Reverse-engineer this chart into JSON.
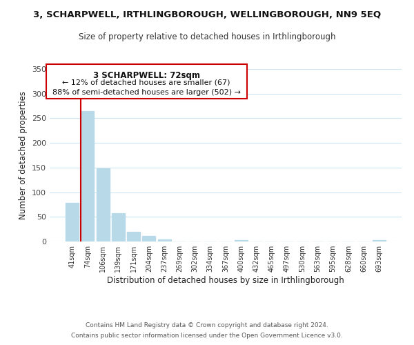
{
  "title": "3, SCHARPWELL, IRTHLINGBOROUGH, WELLINGBOROUGH, NN9 5EQ",
  "subtitle": "Size of property relative to detached houses in Irthlingborough",
  "xlabel": "Distribution of detached houses by size in Irthlingborough",
  "ylabel": "Number of detached properties",
  "footer_line1": "Contains HM Land Registry data © Crown copyright and database right 2024.",
  "footer_line2": "Contains public sector information licensed under the Open Government Licence v3.0.",
  "bar_labels": [
    "41sqm",
    "74sqm",
    "106sqm",
    "139sqm",
    "171sqm",
    "204sqm",
    "237sqm",
    "269sqm",
    "302sqm",
    "334sqm",
    "367sqm",
    "400sqm",
    "432sqm",
    "465sqm",
    "497sqm",
    "530sqm",
    "563sqm",
    "595sqm",
    "628sqm",
    "660sqm",
    "693sqm"
  ],
  "bar_values": [
    78,
    265,
    148,
    57,
    20,
    11,
    4,
    0,
    0,
    0,
    0,
    3,
    0,
    0,
    0,
    0,
    0,
    0,
    0,
    0,
    3
  ],
  "bar_color": "#b8d9e8",
  "vline_color": "#cc0000",
  "vline_x_index": 0,
  "ylim": [
    0,
    350
  ],
  "yticks": [
    0,
    50,
    100,
    150,
    200,
    250,
    300,
    350
  ],
  "annotation_title": "3 SCHARPWELL: 72sqm",
  "annotation_line1": "← 12% of detached houses are smaller (67)",
  "annotation_line2": "88% of semi-detached houses are larger (502) →",
  "bg_color": "#ffffff",
  "grid_color": "#cce5f0"
}
